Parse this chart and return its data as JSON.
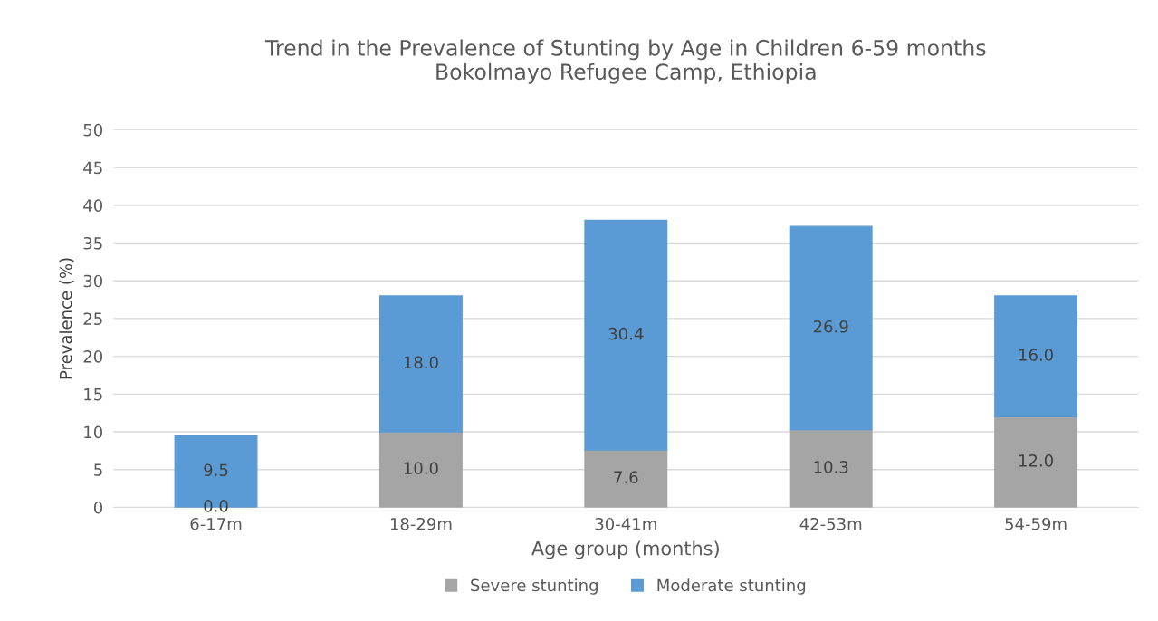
{
  "chart_data": {
    "type": "bar",
    "title": "Trend in the Prevalence of Stunting by Age in Children 6-59 months\nBokolmayo Refugee Camp, Ethiopia",
    "xlabel": "Age group (months)",
    "ylabel": "Prevalence (%)",
    "categories": [
      "6-17m",
      "18-29m",
      "30-41m",
      "42-53m",
      "54-59m"
    ],
    "series": [
      {
        "name": "Severe stunting",
        "color": "#a5a5a5",
        "values": [
          0.0,
          10.0,
          7.6,
          10.3,
          12.0
        ],
        "value_labels": [
          "0.0",
          "10.0",
          "7.6",
          "10.3",
          "12.0"
        ]
      },
      {
        "name": "Moderate stunting",
        "color": "#5b9bd5",
        "values": [
          9.5,
          18.0,
          30.4,
          26.9,
          16.0
        ],
        "value_labels": [
          "9.5",
          "18.0",
          "30.4",
          "26.9",
          "16.0"
        ]
      }
    ],
    "stacked": true,
    "ylim": [
      0,
      50
    ],
    "yticks": [
      0,
      5,
      10,
      15,
      20,
      25,
      30,
      35,
      40,
      45,
      50
    ],
    "grid": "y",
    "legend": "bottom"
  }
}
